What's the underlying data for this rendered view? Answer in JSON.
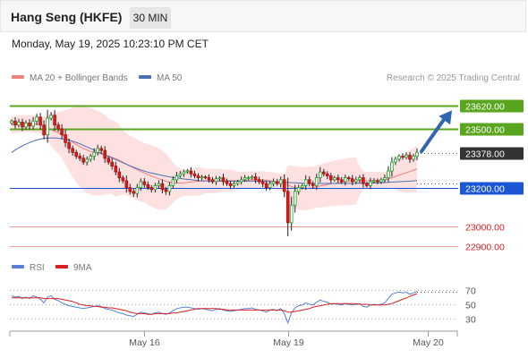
{
  "header": {
    "title": "Hang Seng (HKFE)",
    "timeframe": "30 MIN",
    "datetime": "Monday, May 19, 2025 10:23:10 PM CET"
  },
  "credit": "Research © 2025 Trading Central",
  "colors": {
    "ma20": "#f08080",
    "ma50": "#4a6fb5",
    "bb_fill": "#fde0e0",
    "resistance": "#5aa51e",
    "support": "#1a56d6",
    "minor_support": "#e96b6b",
    "current": "#333333",
    "arrow": "#2f65b3",
    "rsi": "#5b7fd6",
    "rsi_ma": "#d62020"
  },
  "chart_data": [
    {
      "type": "candlestick",
      "legend": [
        "MA 20 + Bollinger Bands",
        "MA 50"
      ],
      "ylim": [
        22850,
        23720
      ],
      "x_tick_labels": [
        "May 16",
        "May 19",
        "May 20"
      ],
      "x_tick_index": [
        37,
        77,
        116
      ],
      "levels": [
        {
          "value": 23620,
          "label": "23620.00",
          "kind": "resistance"
        },
        {
          "value": 23500,
          "label": "23500.00",
          "kind": "resistance"
        },
        {
          "value": 23378,
          "label": "23378.00",
          "kind": "current"
        },
        {
          "value": 23200,
          "label": "23200.00",
          "kind": "support"
        },
        {
          "value": 23000,
          "label": "23000.00",
          "kind": "minor_support"
        },
        {
          "value": 22900,
          "label": "22900.00",
          "kind": "minor_support"
        }
      ],
      "forecast_arrow": {
        "from": 23385,
        "to": 23595
      },
      "close": [
        23540,
        23520,
        23535,
        23510,
        23530,
        23515,
        23540,
        23560,
        23520,
        23470,
        23555,
        23570,
        23520,
        23500,
        23470,
        23430,
        23400,
        23380,
        23360,
        23350,
        23330,
        23345,
        23360,
        23380,
        23400,
        23390,
        23350,
        23330,
        23310,
        23280,
        23250,
        23235,
        23200,
        23180,
        23170,
        23200,
        23230,
        23215,
        23200,
        23190,
        23210,
        23220,
        23190,
        23180,
        23210,
        23240,
        23260,
        23270,
        23280,
        23285,
        23270,
        23260,
        23250,
        23255,
        23250,
        23240,
        23230,
        23245,
        23250,
        23230,
        23220,
        23210,
        23220,
        23230,
        23240,
        23250,
        23250,
        23255,
        23240,
        23230,
        23220,
        23200,
        23220,
        23230,
        23220,
        23240,
        23180,
        23020,
        23110,
        23180,
        23200,
        23210,
        23240,
        23220,
        23210,
        23250,
        23280,
        23270,
        23260,
        23240,
        23250,
        23240,
        23230,
        23250,
        23245,
        23230,
        23240,
        23250,
        23220,
        23210,
        23230,
        23235,
        23230,
        23240,
        23250,
        23285,
        23330,
        23345,
        23360,
        23355,
        23365,
        23345,
        23360,
        23380
      ],
      "ma20": [
        23520,
        23522,
        23525,
        23527,
        23528,
        23527,
        23526,
        23524,
        23520,
        23512,
        23505,
        23497,
        23488,
        23480,
        23470,
        23458,
        23445,
        23432,
        23420,
        23410,
        23400,
        23392,
        23385,
        23380,
        23376,
        23372,
        23367,
        23361,
        23355,
        23347,
        23339,
        23330,
        23320,
        23310,
        23300,
        23291,
        23283,
        23275,
        23267,
        23259,
        23252,
        23245,
        23238,
        23232,
        23228,
        23225,
        23223,
        23223,
        23224,
        23226,
        23228,
        23230,
        23232,
        23233,
        23234,
        23234,
        23234,
        23234,
        23235,
        23236,
        23236,
        23236,
        23235,
        23235,
        23236,
        23237,
        23238,
        23239,
        23240,
        23240,
        23239,
        23237,
        23235,
        23233,
        23230,
        23228,
        23222,
        23213,
        23205,
        23200,
        23197,
        23195,
        23195,
        23197,
        23200,
        23204,
        23208,
        23212,
        23216,
        23219,
        23222,
        23225,
        23227,
        23229,
        23231,
        23232,
        23234,
        23235,
        23236,
        23236,
        23236,
        23236,
        23236,
        23237,
        23238,
        23243,
        23250,
        23257,
        23264,
        23270,
        23276,
        23282,
        23289,
        23296
      ],
      "ma50": [
        23380,
        23392,
        23403,
        23413,
        23422,
        23430,
        23437,
        23443,
        23448,
        23451,
        23453,
        23454,
        23454,
        23452,
        23450,
        23446,
        23442,
        23437,
        23431,
        23424,
        23416,
        23408,
        23400,
        23392,
        23384,
        23376,
        23368,
        23360,
        23352,
        23343,
        23335,
        23327,
        23319,
        23311,
        23304,
        23297,
        23290,
        23284,
        23279,
        23274,
        23270,
        23266,
        23262,
        23258,
        23255,
        23252,
        23249,
        23247,
        23244,
        23242,
        23240,
        23238,
        23236,
        23235,
        23234,
        23233,
        23233,
        23233,
        23233,
        23233,
        23233,
        23233,
        23233,
        23233,
        23233,
        23233,
        23233,
        23233,
        23233,
        23233,
        23232,
        23231,
        23230,
        23229,
        23228,
        23228,
        23227,
        23226,
        23225,
        23224,
        23223,
        23222,
        23222,
        23221,
        23221,
        23221,
        23221,
        23221,
        23221,
        23221,
        23221,
        23221,
        23221,
        23221,
        23221,
        23221,
        23221,
        23222,
        23222,
        23222,
        23223,
        23223,
        23224,
        23225,
        23226,
        23227,
        23228,
        23229,
        23230,
        23231,
        23232,
        23233,
        23234,
        23236
      ]
    },
    {
      "type": "line",
      "legend": [
        "RSI",
        "9MA"
      ],
      "ylim": [
        15,
        85
      ],
      "y_tick_labels": [
        "70",
        "50",
        "30"
      ],
      "y_tick_values": [
        70,
        50,
        30
      ],
      "rsi": [
        62,
        60,
        61,
        58,
        60,
        58,
        62,
        60,
        57,
        52,
        60,
        62,
        57,
        55,
        52,
        50,
        48,
        47,
        46,
        45,
        44,
        45,
        46,
        47,
        48,
        47,
        44,
        43,
        42,
        40,
        38,
        37,
        35,
        34,
        33,
        36,
        39,
        38,
        37,
        36,
        38,
        39,
        37,
        36,
        38,
        41,
        44,
        45,
        46,
        46,
        45,
        44,
        43,
        44,
        43,
        42,
        41,
        43,
        44,
        42,
        41,
        40,
        41,
        42,
        43,
        44,
        44,
        45,
        43,
        42,
        41,
        39,
        42,
        43,
        41,
        44,
        37,
        24,
        38,
        45,
        48,
        49,
        52,
        50,
        49,
        53,
        56,
        54,
        53,
        50,
        51,
        50,
        49,
        51,
        50,
        49,
        50,
        51,
        47,
        46,
        49,
        50,
        49,
        50,
        52,
        58,
        64,
        66,
        67,
        66,
        67,
        64,
        66,
        68
      ],
      "ma9": [
        59,
        59,
        59,
        59,
        59,
        59,
        59,
        59,
        59,
        58,
        58,
        58,
        58,
        58,
        57,
        56,
        55,
        54,
        52,
        50,
        49,
        48,
        48,
        47,
        47,
        46,
        46,
        45,
        45,
        44,
        43,
        42,
        41,
        39,
        38,
        37,
        37,
        37,
        36,
        36,
        37,
        37,
        37,
        37,
        37,
        38,
        38,
        39,
        40,
        41,
        42,
        43,
        44,
        44,
        44,
        44,
        44,
        44,
        43,
        43,
        42,
        42,
        42,
        42,
        42,
        42,
        42,
        42,
        42,
        42,
        42,
        42,
        42,
        42,
        42,
        42,
        41,
        39,
        39,
        40,
        41,
        42,
        43,
        44,
        46,
        47,
        48,
        49,
        50,
        51,
        51,
        51,
        51,
        51,
        51,
        51,
        51,
        50,
        50,
        50,
        49,
        49,
        49,
        49,
        49,
        50,
        51,
        53,
        55,
        57,
        59,
        61,
        63,
        65
      ]
    }
  ]
}
